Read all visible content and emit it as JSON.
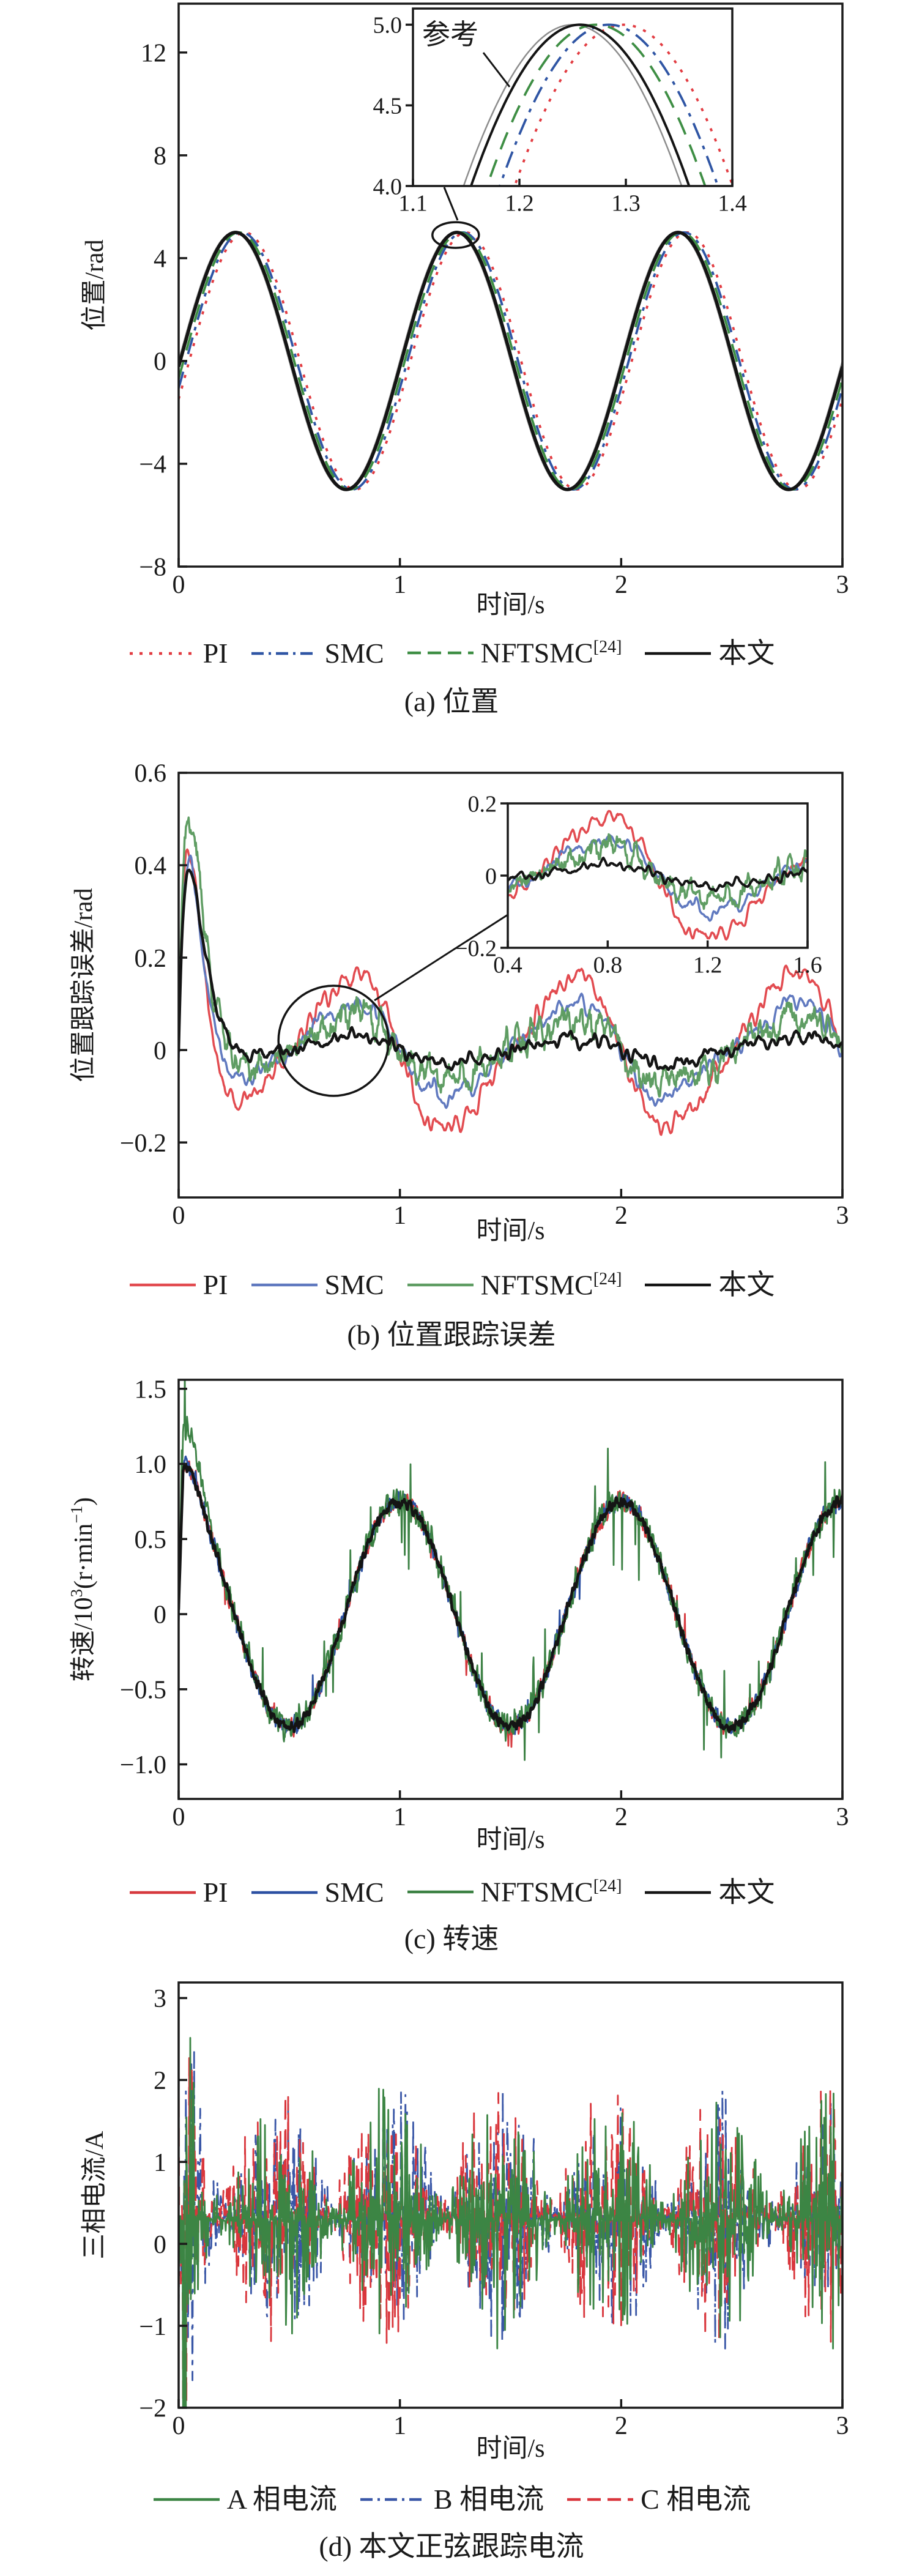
{
  "page": {
    "background": "#ffffff",
    "text_color": "#1a1a1a"
  },
  "chart_data": [
    {
      "id": "a",
      "type": "line",
      "caption": "(a) 位置",
      "xlabel": "时间/s",
      "ylabel": "位置/rad",
      "ylabel_parts": [
        {
          "t": "位置/rad"
        }
      ],
      "xlim": [
        0,
        3
      ],
      "ylim": [
        -8,
        13.9
      ],
      "xticks": [
        {
          "v": 0,
          "label": "0"
        },
        {
          "v": 1,
          "label": "1"
        },
        {
          "v": 2,
          "label": "2"
        },
        {
          "v": 3,
          "label": "3"
        }
      ],
      "yticks": [
        {
          "v": 12,
          "label": "12"
        },
        {
          "v": 8,
          "label": "8"
        },
        {
          "v": 4,
          "label": "4"
        },
        {
          "v": 0,
          "label": "0"
        },
        {
          "v": -4,
          "label": "−4"
        },
        {
          "v": -8,
          "label": "−8"
        }
      ],
      "series": [
        {
          "name": "参考",
          "color": "#8c8c8c",
          "line": "solid",
          "width": 2.5,
          "model": {
            "kind": "sine",
            "amplitude": 5,
            "period": 1,
            "delay": 0
          }
        },
        {
          "name": "PI",
          "color": "#e23b41",
          "line": "dotted",
          "width": 3.8,
          "model": {
            "kind": "sine",
            "amplitude": 5,
            "period": 1,
            "delay": 0.048
          }
        },
        {
          "name": "SMC",
          "color": "#2f55a4",
          "line": "dashdot",
          "width": 3.8,
          "model": {
            "kind": "sine",
            "amplitude": 5,
            "period": 1,
            "delay": 0.034
          }
        },
        {
          "name": "NFTSMC",
          "sup": "[24]",
          "color": "#3e8e44",
          "line": "dashed",
          "width": 3.8,
          "model": {
            "kind": "sine",
            "amplitude": 5,
            "period": 1,
            "delay": 0.022
          }
        },
        {
          "name": "本文",
          "color": "#141414",
          "line": "solid",
          "width": 5.5,
          "model": {
            "kind": "sine",
            "amplitude": 5,
            "period": 1,
            "delay": 0.007
          }
        }
      ],
      "legend": [
        {
          "label": "PI",
          "color": "#e23b41",
          "line": "dotted"
        },
        {
          "label": "SMC",
          "color": "#2f55a4",
          "line": "dashdot"
        },
        {
          "label": "NFTSMC",
          "sup": "[24]",
          "color": "#3e8e44",
          "line": "dashed"
        },
        {
          "label": "本文",
          "color": "#141414",
          "line": "solid"
        }
      ],
      "inset": {
        "xlim": [
          1.1,
          1.4
        ],
        "ylim": [
          4.0,
          5.1
        ],
        "xticks": [
          {
            "v": 1.1,
            "label": "1.1"
          },
          {
            "v": 1.2,
            "label": "1.2"
          },
          {
            "v": 1.3,
            "label": "1.3"
          },
          {
            "v": 1.4,
            "label": "1.4"
          }
        ],
        "yticks": [
          {
            "v": 5.0,
            "label": "5.0"
          },
          {
            "v": 4.5,
            "label": "4.5"
          },
          {
            "v": 4.0,
            "label": "4.0"
          }
        ],
        "annotation": "参考"
      },
      "callout": {
        "shape": "ellipse",
        "at_t": 1.252,
        "at_y": 4.9
      }
    },
    {
      "id": "b",
      "type": "line",
      "caption": "(b) 位置跟踪误差",
      "xlabel": "时间/s",
      "ylabel": "位置跟踪误差/rad",
      "ylabel_parts": [
        {
          "t": "位置跟踪误差/rad"
        }
      ],
      "xlim": [
        0,
        3
      ],
      "ylim": [
        -0.319,
        0.6
      ],
      "xticks": [
        {
          "v": 0,
          "label": "0"
        },
        {
          "v": 1,
          "label": "1"
        },
        {
          "v": 2,
          "label": "2"
        },
        {
          "v": 3,
          "label": "3"
        }
      ],
      "yticks": [
        {
          "v": 0.6,
          "label": "0.6"
        },
        {
          "v": 0.4,
          "label": "0.4"
        },
        {
          "v": 0.2,
          "label": "0.2"
        },
        {
          "v": 0,
          "label": "0"
        },
        {
          "v": -0.2,
          "label": "−0.2"
        }
      ],
      "series": [
        {
          "name": "PI",
          "color": "#e24b50",
          "line": "solid",
          "width": 3.5,
          "model": {
            "kind": "error",
            "osc_amp": 0.165,
            "skew": 0.35,
            "trans_peak": 0.5,
            "trans_t": 0.05,
            "noise": 0.012,
            "seed": 11
          }
        },
        {
          "name": "SMC",
          "color": "#6079bf",
          "line": "solid",
          "width": 3.5,
          "model": {
            "kind": "error",
            "osc_amp": 0.1,
            "skew": 0.35,
            "trans_peak": 0.46,
            "trans_t": 0.05,
            "noise": 0.012,
            "seed": 22
          }
        },
        {
          "name": "NFTSMC",
          "sup": "[24]",
          "color": "#5f9d63",
          "line": "solid",
          "width": 3.5,
          "model": {
            "kind": "error",
            "osc_amp": 0.075,
            "skew": 0.35,
            "trans_peak": 0.52,
            "trans_t": 0.05,
            "noise": 0.018,
            "jitter": 0.012,
            "seed": 33
          }
        },
        {
          "name": "本文",
          "color": "#141414",
          "line": "solid",
          "width": 4.5,
          "model": {
            "kind": "error",
            "osc_amp": 0.028,
            "skew": 0.35,
            "trans_peak": 0.4,
            "trans_t": 0.05,
            "noise": 0.008,
            "seed": 44
          }
        }
      ],
      "legend": [
        {
          "label": "PI",
          "color": "#e24b50",
          "line": "solid"
        },
        {
          "label": "SMC",
          "color": "#6079bf",
          "line": "solid"
        },
        {
          "label": "NFTSMC",
          "sup": "[24]",
          "color": "#5f9d63",
          "line": "solid"
        },
        {
          "label": "本文",
          "color": "#141414",
          "line": "solid"
        }
      ],
      "inset": {
        "xlim": [
          0.4,
          1.6
        ],
        "ylim": [
          -0.2,
          0.2
        ],
        "xticks": [
          {
            "v": 0.4,
            "label": "0.4"
          },
          {
            "v": 0.8,
            "label": "0.8"
          },
          {
            "v": 1.2,
            "label": "1.2"
          },
          {
            "v": 1.6,
            "label": "1.6"
          }
        ],
        "yticks": [
          {
            "v": 0.2,
            "label": "0.2"
          },
          {
            "v": 0,
            "label": "0"
          },
          {
            "v": -0.2,
            "label": "−0.2"
          }
        ]
      },
      "callout": {
        "shape": "circle",
        "at_t": 0.7,
        "at_y": 0.02
      }
    },
    {
      "id": "c",
      "type": "line",
      "caption": "(c) 转速",
      "xlabel": "时间/s",
      "ylabel": "转速/10³(r·min⁻¹)",
      "ylabel_parts": [
        {
          "t": "转速/10"
        },
        {
          "t": "3",
          "sup": true
        },
        {
          "t": "(r·min"
        },
        {
          "t": "−1",
          "sup": true
        },
        {
          "t": ")"
        }
      ],
      "xlim": [
        0,
        3
      ],
      "ylim": [
        -1.23,
        1.56
      ],
      "xticks": [
        {
          "v": 0,
          "label": "0"
        },
        {
          "v": 1,
          "label": "1"
        },
        {
          "v": 2,
          "label": "2"
        },
        {
          "v": 3,
          "label": "3"
        }
      ],
      "yticks": [
        {
          "v": 1.5,
          "label": "1.5"
        },
        {
          "v": 1.0,
          "label": "1.0"
        },
        {
          "v": 0.5,
          "label": "0.5"
        },
        {
          "v": 0,
          "label": "0"
        },
        {
          "v": -0.5,
          "label": "−0.5"
        },
        {
          "v": -1.0,
          "label": "−1.0"
        }
      ],
      "series": [
        {
          "name": "PI",
          "color": "#d6393e",
          "line": "solid",
          "width": 2.8,
          "model": {
            "kind": "noisycos",
            "amplitude": 0.75,
            "period": 1,
            "trans_peak": 0.28,
            "trans_t": 0.04,
            "noise": 0.03,
            "spike_prob": 0.008,
            "spike_amp": 0.12,
            "seed": 55
          }
        },
        {
          "name": "SMC",
          "color": "#2c50a2",
          "line": "solid",
          "width": 2.8,
          "model": {
            "kind": "noisycos",
            "amplitude": 0.75,
            "period": 1,
            "trans_peak": 0.28,
            "trans_t": 0.04,
            "noise": 0.03,
            "spike_prob": 0.008,
            "spike_amp": 0.12,
            "seed": 66
          }
        },
        {
          "name": "NFTSMC",
          "sup": "[24]",
          "color": "#3c8144",
          "line": "solid",
          "width": 2.8,
          "model": {
            "kind": "noisycos",
            "amplitude": 0.75,
            "period": 1,
            "trans_peak": 0.55,
            "trans_t": 0.04,
            "noise": 0.045,
            "spike_prob": 0.03,
            "spike_amp": 0.3,
            "seed": 77
          }
        },
        {
          "name": "本文",
          "color": "#141414",
          "line": "solid",
          "width": 4.5,
          "model": {
            "kind": "noisycos",
            "amplitude": 0.75,
            "period": 1,
            "trans_peak": 0.26,
            "trans_t": 0.04,
            "noise": 0.018,
            "spike_prob": 0,
            "spike_amp": 0,
            "seed": 88
          }
        }
      ],
      "legend": [
        {
          "label": "PI",
          "color": "#d6393e",
          "line": "solid"
        },
        {
          "label": "SMC",
          "color": "#2c50a2",
          "line": "solid"
        },
        {
          "label": "NFTSMC",
          "sup": "[24]",
          "color": "#3c8144",
          "line": "solid"
        },
        {
          "label": "本文",
          "color": "#141414",
          "line": "solid"
        }
      ]
    },
    {
      "id": "d",
      "type": "line",
      "caption": "(d) 本文正弦跟踪电流",
      "xlabel": "时间/s",
      "ylabel": "三相电流/A",
      "ylabel_parts": [
        {
          "t": "三相电流/A"
        }
      ],
      "xlim": [
        0,
        3
      ],
      "ylim": [
        -2,
        3.19
      ],
      "xticks": [
        {
          "v": 0,
          "label": "0"
        },
        {
          "v": 1,
          "label": "1"
        },
        {
          "v": 2,
          "label": "2"
        },
        {
          "v": 3,
          "label": "3"
        }
      ],
      "yticks": [
        {
          "v": 3,
          "label": "3"
        },
        {
          "v": 2,
          "label": "2"
        },
        {
          "v": 1,
          "label": "1"
        },
        {
          "v": 0,
          "label": "0"
        },
        {
          "v": -1,
          "label": "−1"
        },
        {
          "v": -2,
          "label": "−2"
        }
      ],
      "series": [
        {
          "name": "B 相电流",
          "color": "#3a57a7",
          "line": "dashdot",
          "width": 2.8,
          "model": {
            "kind": "bursts",
            "base": 0.33,
            "env_amp": 0.85,
            "env_exp": 1.3,
            "phase": 0.217,
            "init_amp": 1.1,
            "noise": 0.05,
            "seed": 202
          }
        },
        {
          "name": "C 相电流",
          "color": "#d9363c",
          "line": "dashed",
          "width": 2.8,
          "model": {
            "kind": "bursts",
            "base": 0.35,
            "env_amp": 0.85,
            "env_exp": 1.3,
            "phase": 0.18,
            "init_amp": 1.1,
            "noise": 0.05,
            "seed": 303
          }
        },
        {
          "name": "A 相电流",
          "color": "#3c8544",
          "line": "solid",
          "width": 2.8,
          "model": {
            "kind": "bursts",
            "base": 0.3,
            "env_amp": 0.88,
            "env_exp": 1.3,
            "phase": 0.2,
            "init_amp": 1.15,
            "noise": 0.05,
            "seed": 101
          }
        }
      ],
      "legend": [
        {
          "label": "A 相电流",
          "color": "#3c8544",
          "line": "solid"
        },
        {
          "label": "B 相电流",
          "color": "#3a57a7",
          "line": "dashdot"
        },
        {
          "label": "C 相电流",
          "color": "#d9363c",
          "line": "dashed"
        }
      ]
    }
  ]
}
